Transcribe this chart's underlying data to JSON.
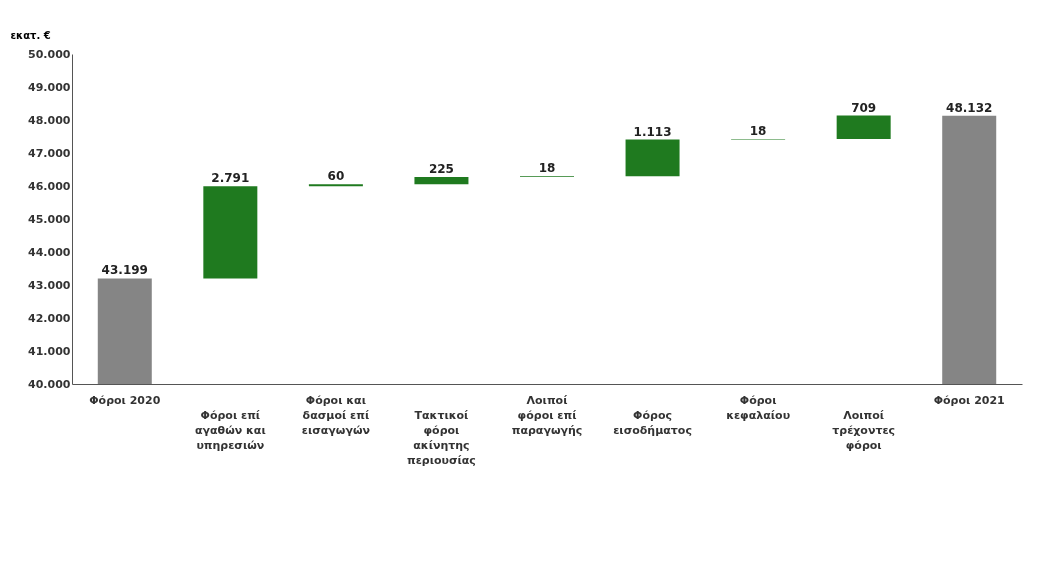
{
  "chart_data": {
    "type": "bar",
    "ylabel": "εκατ. €",
    "categories": [
      "Φόροι 2020",
      "Φόροι επί αγαθών και υπηρεσιών",
      "Φόροι και δασμοί επί εισαγωγών",
      "Τακτικοί φόροι ακίνητης περιουσίας",
      "Λοιποί φόροι επί παραγωγής",
      "Φόρος εισοδήματος",
      "Φόροι κεφαλαίου",
      "Λοιποί τρέχοντες φόροι",
      "Φόροι 2021"
    ],
    "values": [
      43199,
      2791,
      60,
      225,
      18,
      1113,
      18,
      709,
      48132
    ],
    "base": [
      null,
      43199,
      45990,
      46050,
      46275,
      46293,
      47406,
      47424,
      null
    ],
    "value_labels": [
      "43.199",
      "2.791",
      "60",
      "225",
      "18",
      "1.113",
      "18",
      "709",
      "48.132"
    ],
    "colors": [
      "#858585",
      "#1f7a1f",
      "#1f7a1f",
      "#1f7a1f",
      "#1f7a1f",
      "#1f7a1f",
      "#1f7a1f",
      "#1f7a1f",
      "#858585"
    ],
    "ylim": [
      40000,
      50000
    ],
    "yticks": [
      {
        "value": 40000,
        "label": "40.000"
      },
      {
        "value": 41000,
        "label": "41.000"
      },
      {
        "value": 42000,
        "label": "42.000"
      },
      {
        "value": 43000,
        "label": "43.000"
      },
      {
        "value": 44000,
        "label": "44.000"
      },
      {
        "value": 45000,
        "label": "45.000"
      },
      {
        "value": 46000,
        "label": "46.000"
      },
      {
        "value": 47000,
        "label": "47.000"
      },
      {
        "value": 48000,
        "label": "48.000"
      },
      {
        "value": 49000,
        "label": "49.000"
      },
      {
        "value": 50000,
        "label": "50.000"
      }
    ]
  }
}
